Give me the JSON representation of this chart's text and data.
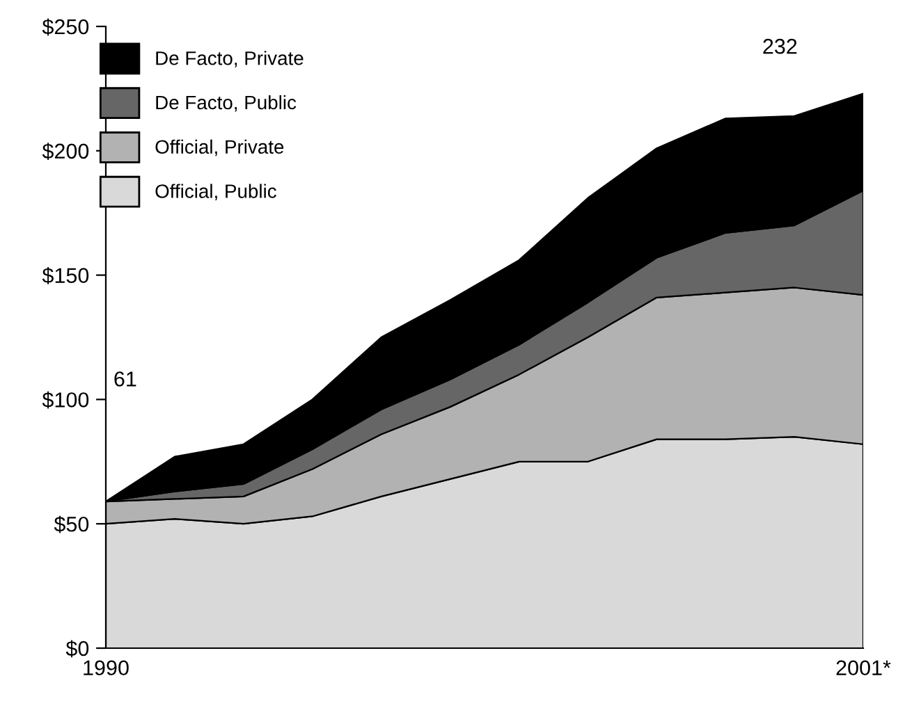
{
  "chart_data": {
    "type": "area",
    "stacked": true,
    "x": [
      1990,
      1991,
      1992,
      1993,
      1994,
      1995,
      1996,
      1997,
      1998,
      1999,
      2000,
      2001
    ],
    "series": [
      {
        "name": "Official, Public",
        "color": "#d9d9d9",
        "values": [
          50,
          52,
          50,
          53,
          61,
          68,
          75,
          75,
          84,
          84,
          85,
          82
        ]
      },
      {
        "name": "Official, Private",
        "color": "#b2b2b2",
        "values": [
          9,
          8,
          11,
          19,
          25,
          29,
          35,
          50,
          57,
          59,
          60,
          60
        ]
      },
      {
        "name": "De Facto, Public",
        "color": "#666666",
        "values": [
          0,
          3,
          5,
          8,
          10,
          11,
          12,
          14,
          16,
          24,
          25,
          42
        ]
      },
      {
        "name": "De Facto, Private",
        "color": "#000000",
        "values": [
          0,
          14,
          16,
          20,
          29,
          32,
          34,
          42,
          44,
          46,
          44,
          39
        ]
      }
    ],
    "xlim": [
      1990,
      2001
    ],
    "xticks": [
      {
        "value": 1990,
        "label": "1990"
      },
      {
        "value": 2001,
        "label": "2001*"
      }
    ],
    "ylim": [
      0,
      250
    ],
    "yticks": [
      {
        "value": 0,
        "label": "$0"
      },
      {
        "value": 50,
        "label": "$50"
      },
      {
        "value": 100,
        "label": "$100"
      },
      {
        "value": 150,
        "label": "$150"
      },
      {
        "value": 200,
        "label": "$200"
      },
      {
        "value": 250,
        "label": "$250"
      }
    ],
    "annotations": [
      "61",
      "232"
    ],
    "legend": "top left",
    "grid": false
  }
}
